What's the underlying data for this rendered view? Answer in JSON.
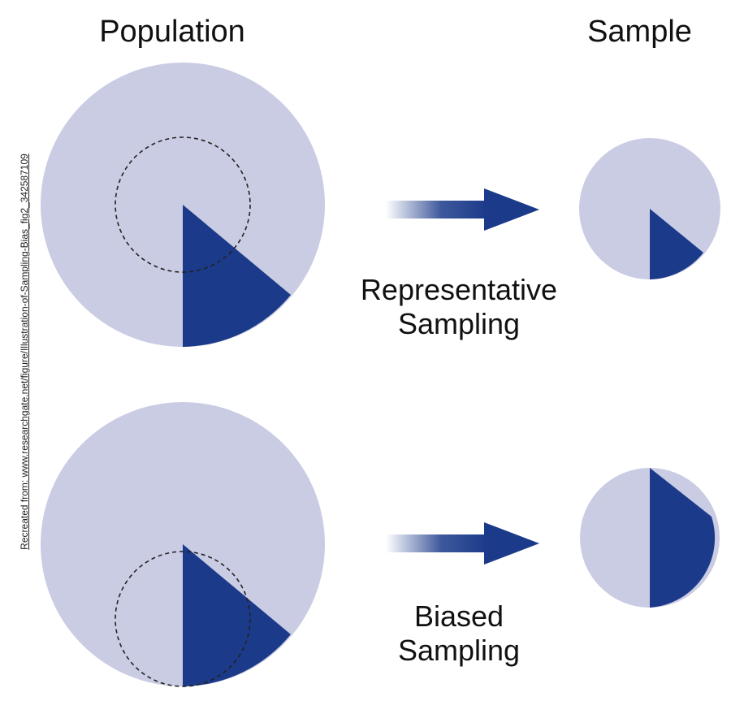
{
  "headings": {
    "population": "Population",
    "sample": "Sample"
  },
  "labels": {
    "representative_line1": "Representative",
    "representative_line2": "Sampling",
    "biased_line1": "Biased",
    "biased_line2": "Sampling"
  },
  "source_credit": "Recreated from: www.researchgate.net/figure/Illustration-of-Sampling-Bias_fig2_342587109",
  "colors": {
    "light_fill": "#cacce4",
    "dark_fill": "#1b3a8a",
    "background": "#ffffff"
  }
}
